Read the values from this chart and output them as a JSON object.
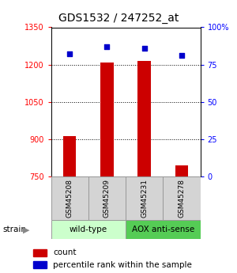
{
  "title": "GDS1532 / 247252_at",
  "samples": [
    "GSM45208",
    "GSM45209",
    "GSM45231",
    "GSM45278"
  ],
  "counts": [
    912,
    1208,
    1215,
    793
  ],
  "percentiles": [
    82,
    87,
    86,
    81
  ],
  "left_ylim": [
    750,
    1350
  ],
  "left_yticks": [
    750,
    900,
    1050,
    1200,
    1350
  ],
  "right_ylim": [
    0,
    100
  ],
  "right_yticks": [
    0,
    25,
    50,
    75,
    100
  ],
  "right_yticklabels": [
    "0",
    "25",
    "50",
    "75",
    "100%"
  ],
  "bar_color": "#cc0000",
  "dot_color": "#0000cc",
  "bar_bottom": 750,
  "groups": [
    {
      "label": "wild-type",
      "samples": [
        0,
        1
      ],
      "color": "#ccffcc"
    },
    {
      "label": "AOX anti-sense",
      "samples": [
        2,
        3
      ],
      "color": "#55cc55"
    }
  ],
  "strain_label": "strain",
  "legend_count_label": "count",
  "legend_pct_label": "percentile rank within the sample",
  "title_fontsize": 10,
  "tick_fontsize": 7,
  "bar_width": 0.35
}
